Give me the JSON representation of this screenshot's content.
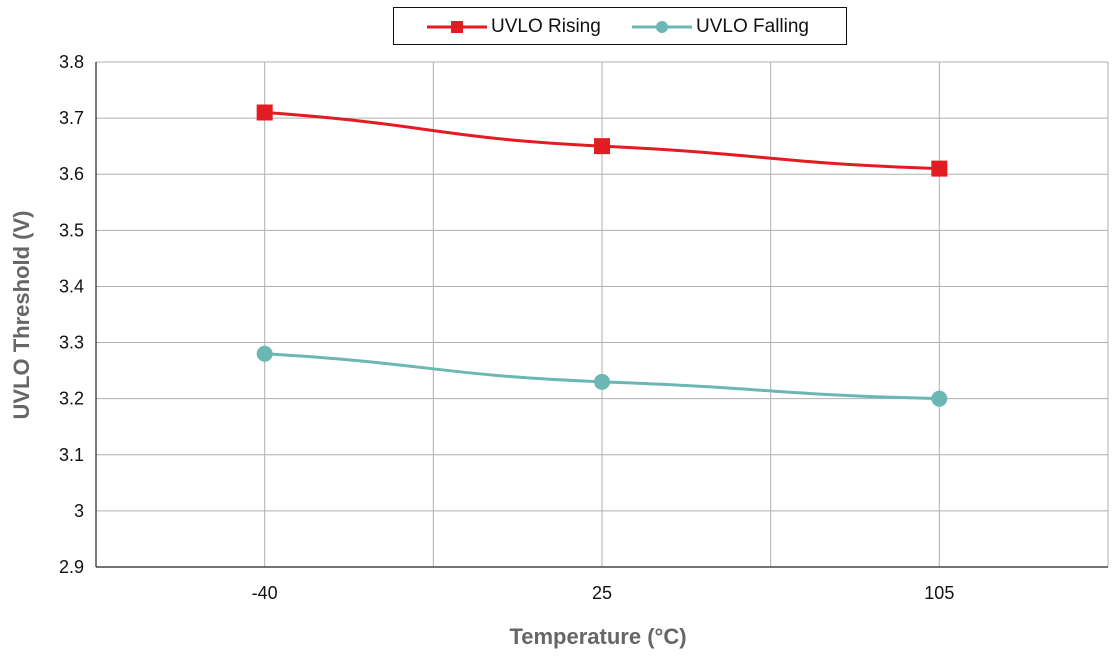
{
  "chart_data": {
    "type": "line",
    "title": "",
    "xlabel": "Temperature (°C)",
    "ylabel": "UVLO Threshold (V)",
    "categories": [
      "-40",
      "25",
      "105"
    ],
    "ylim": [
      2.9,
      3.8
    ],
    "yticks": [
      "2.9",
      "3",
      "3.1",
      "3.2",
      "3.3",
      "3.4",
      "3.5",
      "3.6",
      "3.7",
      "3.8"
    ],
    "grid": true,
    "legend_position": "top-center",
    "series": [
      {
        "name": "UVLO Rising",
        "values": [
          3.71,
          3.65,
          3.61
        ],
        "color": "#E31B23",
        "marker": "square"
      },
      {
        "name": "UVLO Falling",
        "values": [
          3.28,
          3.23,
          3.2
        ],
        "color": "#6BB7B4",
        "marker": "circle"
      }
    ]
  }
}
